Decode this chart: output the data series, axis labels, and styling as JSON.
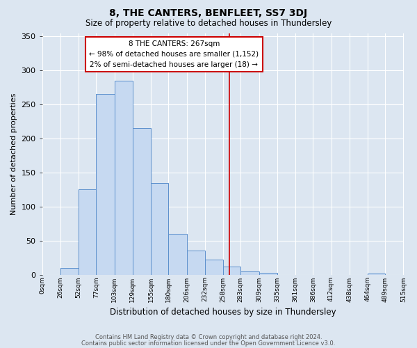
{
  "title": "8, THE CANTERS, BENFLEET, SS7 3DJ",
  "subtitle": "Size of property relative to detached houses in Thundersley",
  "xlabel": "Distribution of detached houses by size in Thundersley",
  "ylabel": "Number of detached properties",
  "bar_vals": [
    0,
    10,
    125,
    265,
    285,
    215,
    135,
    60,
    35,
    22,
    12,
    5,
    3,
    0,
    0,
    0,
    0,
    0,
    2,
    0
  ],
  "bin_edges": [
    0,
    26,
    52,
    77,
    103,
    129,
    155,
    180,
    206,
    232,
    258,
    283,
    309,
    335,
    361,
    386,
    412,
    438,
    464,
    489,
    515
  ],
  "bar_color": "#c6d9f1",
  "bar_edge_color": "#5b8fcc",
  "background_color": "#dce6f1",
  "grid_color": "#ffffff",
  "red_line_x": 267,
  "annotation_line1": "8 THE CANTERS: 267sqm",
  "annotation_line2": "← 98% of detached houses are smaller (1,152)",
  "annotation_line3": "2% of semi-detached houses are larger (18) →",
  "annotation_box_color": "#ffffff",
  "annotation_box_edge_color": "#cc0000",
  "ylim": [
    0,
    355
  ],
  "yticks": [
    0,
    50,
    100,
    150,
    200,
    250,
    300,
    350
  ],
  "footer1": "Contains HM Land Registry data © Crown copyright and database right 2024.",
  "footer2": "Contains public sector information licensed under the Open Government Licence v3.0."
}
